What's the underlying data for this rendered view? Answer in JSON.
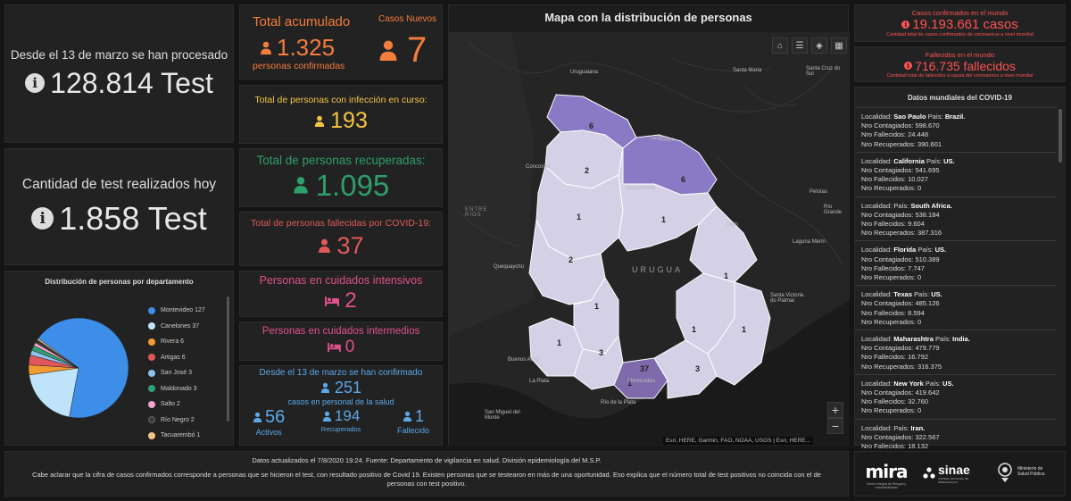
{
  "tests_total": {
    "caption": "Desde el 13 de marzo se han procesado",
    "value": "128.814 Test"
  },
  "tests_today": {
    "caption": "Cantidad de test realizados hoy",
    "value": "1.858 Test"
  },
  "total_acumulado": {
    "title": "Total acumulado",
    "value": "1.325",
    "caption": "personas confirmadas"
  },
  "casos_nuevos": {
    "title": "Casos Nuevos",
    "value": "7"
  },
  "en_curso": {
    "title": "Total de personas con infección en curso:",
    "value": "193"
  },
  "recuperadas": {
    "title": "Total de personas recuperadas:",
    "value": "1.095"
  },
  "fallecidas": {
    "title": "Total de personas fallecidas por COVID-19:",
    "value": "37"
  },
  "intensivos": {
    "title": "Personas en cuidados intensivos",
    "value": "2"
  },
  "intermedios": {
    "title": "Personas en cuidados intermedios",
    "value": "0"
  },
  "personal_salud": {
    "line1": "Desde el 13 de marzo se han confirmado",
    "value": "251",
    "line2": "casos en personal de la salud",
    "activos_value": "56",
    "activos_label": "Activos",
    "recuperados_value": "194",
    "recuperados_label": "Recuperados",
    "fallecido_value": "1",
    "fallecido_label": "Fallecido"
  },
  "distribution": {
    "title": "Distribución de personas por departamento"
  },
  "chart_data": {
    "type": "pie",
    "title": "Distribución de personas por departamento",
    "categories": [
      "Montevideo",
      "Canelones",
      "Rivera",
      "Artigas",
      "San José",
      "Maldonado",
      "Salto",
      "Río Negro",
      "Tacuarembó"
    ],
    "values": [
      127,
      37,
      6,
      6,
      3,
      3,
      2,
      2,
      1
    ],
    "colors": [
      "#3d8ee8",
      "#bfe3f9",
      "#f29b33",
      "#e0575b",
      "#8bc3ee",
      "#2e9e74",
      "#f4a4c7",
      "#3a3a3a",
      "#f4c58a"
    ],
    "legend": [
      "Montevideo 127",
      "Canelones 37",
      "Rivera 6",
      "Artigas 6",
      "San José 3",
      "Maldonado 3",
      "Salto 2",
      "Río Negro 2",
      "Tacuarembó 1"
    ]
  },
  "map": {
    "title": "Mapa con la distribución de personas",
    "attribution": "Esri, HERE, Garmin, FAO, NOAA, USGS | Esri, HERE...",
    "zoom_in": "+",
    "zoom_out": "−",
    "region_labels": [
      "6",
      "2",
      "6",
      "1",
      "1",
      "2",
      "1",
      "1",
      "1",
      "1",
      "1",
      "3",
      "37",
      "3",
      "1"
    ],
    "place_labels": [
      "Concordia",
      "Uruguaiana",
      "Santa Maria",
      "Santa Cruz do Sul",
      "Pelotas",
      "Río Grande",
      "Laguna Merín",
      "Salto",
      "Tacuarembó",
      "Melo",
      "ENTRE RÍOS",
      "URUGUA",
      "Quequaychú",
      "Buenos Aires",
      "La Plata",
      "Montevideo",
      "Río de la Plata",
      "San Miguel del Monte",
      "Santa Victoria do Palmar",
      "Rivera"
    ]
  },
  "world_confirmed": {
    "title": "Casos confirmados en el mundo",
    "value": "19.193.661 casos",
    "caption": "Cantidad total de casos confirmados de coronavirus a nivel mundial"
  },
  "world_deaths": {
    "title": "Fallecidos en el mundo",
    "value": "716.735 fallecidos",
    "caption": "Cantidad total de fallecidos a causa del coronavirus a nivel mundial"
  },
  "world_data": {
    "title": "Datos mundiales del COVID-19",
    "labels": {
      "localidad": "Localidad:",
      "pais": "País:",
      "contagiados": "Nro Contagiados:",
      "fallecidos": "Nro Fallecidos:",
      "recuperados": "Nro Recuperados:"
    },
    "entries": [
      {
        "localidad": "Sao Paulo",
        "pais": "Brazil.",
        "contagiados": "598.670",
        "fallecidos": "24.448",
        "recuperados": "390.601"
      },
      {
        "localidad": "California",
        "pais": "US.",
        "contagiados": "541.695",
        "fallecidos": "10.027",
        "recuperados": "0"
      },
      {
        "localidad": "",
        "pais": "South Africa.",
        "contagiados": "538.184",
        "fallecidos": "9.604",
        "recuperados": "387.316"
      },
      {
        "localidad": "Florida",
        "pais": "US.",
        "contagiados": "510.389",
        "fallecidos": "7.747",
        "recuperados": "0"
      },
      {
        "localidad": "Texas",
        "pais": "US.",
        "contagiados": "485.126",
        "fallecidos": "8.594",
        "recuperados": "0"
      },
      {
        "localidad": "Maharashtra",
        "pais": "India.",
        "contagiados": "479.779",
        "fallecidos": "16.792",
        "recuperados": "316.375"
      },
      {
        "localidad": "New York",
        "pais": "US.",
        "contagiados": "419.642",
        "fallecidos": "32.760",
        "recuperados": "0"
      },
      {
        "localidad": "",
        "pais": "Iran.",
        "contagiados": "322.567",
        "fallecidos": "18.132",
        "recuperados": ""
      }
    ]
  },
  "footer": {
    "line1": "Datos actualizados el 7/8/2020 19:24. Fuente: Departamento de vigilancia en salud. División epidemiología del M.S.P.",
    "line2": "Cabe aclarar que la cifra de casos confirmados corresponde a personas que se hicieron el test, con resultado positivo de Covid 19. Existen personas que se testearon en más de una oportunidad. Eso explica que el número total de test positivos no coincida con el de personas con test positivo."
  },
  "logos": {
    "mira": "mira",
    "mira_sub": "Centro Integral de Riesgos y Vulnerabilidades",
    "sinae": "sinae",
    "sinae_sub": "SISTEMA NACIONAL DE EMERGENCIAS",
    "msp": "Ministerio de Salud Pública"
  },
  "colors": {
    "orange": "#f47c3c",
    "yellow": "#f5c542",
    "green": "#2e9e6a",
    "red": "#e05a5a",
    "pink": "#e0508c",
    "blue": "#5aa8e8",
    "world_red": "#ff5252"
  }
}
